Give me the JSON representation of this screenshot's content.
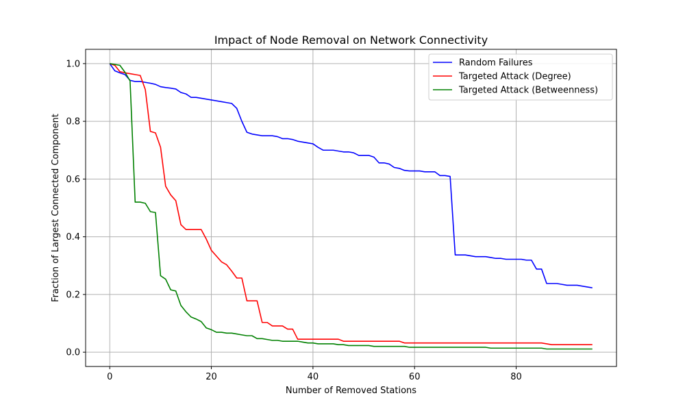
{
  "chart_data": {
    "type": "line",
    "title": "Impact of Node Removal on Network Connectivity",
    "xlabel": "Number of Removed Stations",
    "ylabel": "Fraction of Largest Connected Component",
    "xlim": [
      -4.75,
      99.75
    ],
    "ylim": [
      -0.0495,
      1.0495
    ],
    "xticks": [
      0,
      20,
      40,
      60,
      80
    ],
    "yticks": [
      0.0,
      0.2,
      0.4,
      0.6,
      0.8,
      1.0
    ],
    "xtick_labels": [
      "0",
      "20",
      "40",
      "60",
      "80"
    ],
    "ytick_labels": [
      "0.0",
      "0.2",
      "0.4",
      "0.6",
      "0.8",
      "1.0"
    ],
    "grid": true,
    "legend_position": "top-right",
    "x": [
      0,
      1,
      2,
      3,
      4,
      5,
      6,
      7,
      8,
      9,
      10,
      11,
      12,
      13,
      14,
      15,
      16,
      17,
      18,
      19,
      20,
      21,
      22,
      23,
      24,
      25,
      26,
      27,
      28,
      29,
      30,
      31,
      32,
      33,
      34,
      35,
      36,
      37,
      38,
      39,
      40,
      41,
      42,
      43,
      44,
      45,
      46,
      47,
      48,
      49,
      50,
      51,
      52,
      53,
      54,
      55,
      56,
      57,
      58,
      59,
      60,
      61,
      62,
      63,
      64,
      65,
      66,
      67,
      68,
      69,
      70,
      71,
      72,
      73,
      74,
      75,
      76,
      77,
      78,
      79,
      80,
      81,
      82,
      83,
      84,
      85,
      86,
      87,
      88,
      89,
      90,
      91,
      92,
      93,
      94,
      95
    ],
    "series": [
      {
        "name": "Random Failures",
        "color": "#0000ff",
        "values": [
          1.0,
          0.975,
          0.968,
          0.962,
          0.942,
          0.938,
          0.938,
          0.935,
          0.932,
          0.928,
          0.92,
          0.917,
          0.915,
          0.912,
          0.9,
          0.895,
          0.883,
          0.883,
          0.88,
          0.877,
          0.874,
          0.871,
          0.868,
          0.865,
          0.862,
          0.845,
          0.8,
          0.762,
          0.756,
          0.753,
          0.75,
          0.75,
          0.75,
          0.747,
          0.74,
          0.74,
          0.737,
          0.731,
          0.728,
          0.725,
          0.722,
          0.71,
          0.7,
          0.7,
          0.7,
          0.697,
          0.694,
          0.694,
          0.691,
          0.682,
          0.682,
          0.682,
          0.676,
          0.656,
          0.656,
          0.652,
          0.64,
          0.637,
          0.63,
          0.628,
          0.628,
          0.628,
          0.625,
          0.625,
          0.625,
          0.612,
          0.612,
          0.609,
          0.337,
          0.337,
          0.337,
          0.334,
          0.331,
          0.331,
          0.331,
          0.328,
          0.325,
          0.325,
          0.322,
          0.322,
          0.322,
          0.322,
          0.319,
          0.319,
          0.288,
          0.288,
          0.238,
          0.238,
          0.238,
          0.235,
          0.232,
          0.232,
          0.232,
          0.229,
          0.226,
          0.223
        ]
      },
      {
        "name": "Targeted Attack (Degree)",
        "color": "#ff0000",
        "values": [
          1.0,
          0.994,
          0.972,
          0.968,
          0.965,
          0.962,
          0.959,
          0.91,
          0.765,
          0.76,
          0.71,
          0.575,
          0.545,
          0.525,
          0.442,
          0.425,
          0.425,
          0.425,
          0.425,
          0.392,
          0.353,
          0.333,
          0.313,
          0.303,
          0.281,
          0.257,
          0.257,
          0.178,
          0.178,
          0.178,
          0.103,
          0.103,
          0.091,
          0.091,
          0.091,
          0.08,
          0.08,
          0.045,
          0.045,
          0.045,
          0.045,
          0.045,
          0.045,
          0.045,
          0.045,
          0.045,
          0.038,
          0.038,
          0.038,
          0.038,
          0.038,
          0.038,
          0.038,
          0.038,
          0.038,
          0.038,
          0.038,
          0.038,
          0.032,
          0.032,
          0.032,
          0.032,
          0.032,
          0.032,
          0.032,
          0.032,
          0.032,
          0.032,
          0.032,
          0.032,
          0.032,
          0.032,
          0.032,
          0.032,
          0.032,
          0.032,
          0.032,
          0.032,
          0.032,
          0.032,
          0.032,
          0.032,
          0.032,
          0.032,
          0.032,
          0.032,
          0.029,
          0.026,
          0.026,
          0.026,
          0.026,
          0.026,
          0.026,
          0.026,
          0.026,
          0.026
        ]
      },
      {
        "name": "Targeted Attack (Betweenness)",
        "color": "#008000",
        "values": [
          1.0,
          0.997,
          0.994,
          0.97,
          0.94,
          0.52,
          0.52,
          0.516,
          0.487,
          0.484,
          0.265,
          0.253,
          0.216,
          0.212,
          0.162,
          0.14,
          0.122,
          0.115,
          0.106,
          0.084,
          0.078,
          0.069,
          0.069,
          0.066,
          0.066,
          0.063,
          0.06,
          0.057,
          0.057,
          0.047,
          0.047,
          0.044,
          0.041,
          0.041,
          0.038,
          0.038,
          0.038,
          0.038,
          0.035,
          0.032,
          0.032,
          0.029,
          0.029,
          0.029,
          0.029,
          0.026,
          0.026,
          0.023,
          0.023,
          0.023,
          0.023,
          0.023,
          0.02,
          0.02,
          0.02,
          0.02,
          0.02,
          0.02,
          0.02,
          0.017,
          0.017,
          0.017,
          0.017,
          0.017,
          0.017,
          0.017,
          0.017,
          0.017,
          0.017,
          0.017,
          0.017,
          0.017,
          0.017,
          0.017,
          0.017,
          0.014,
          0.014,
          0.014,
          0.014,
          0.014,
          0.014,
          0.014,
          0.014,
          0.014,
          0.014,
          0.014,
          0.011,
          0.011,
          0.011,
          0.011,
          0.011,
          0.011,
          0.011,
          0.011,
          0.011,
          0.011
        ]
      }
    ]
  }
}
